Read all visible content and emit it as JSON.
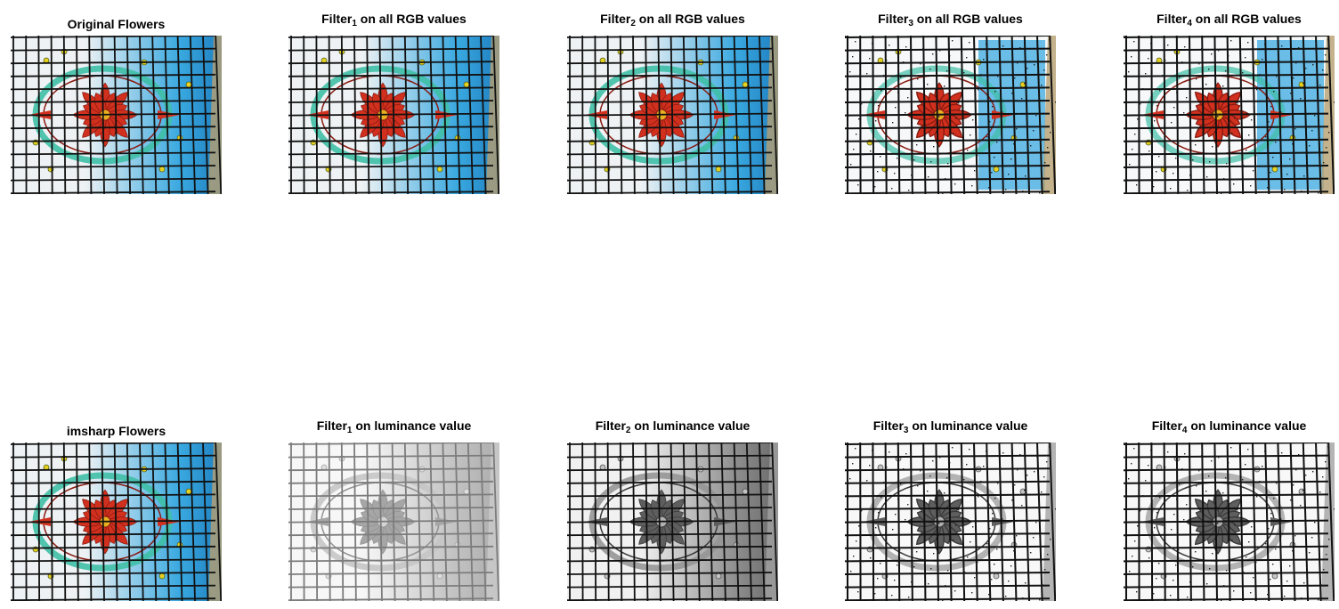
{
  "figure": {
    "panels": [
      {
        "id": "original",
        "title": "Original Flowers",
        "variant": "color"
      },
      {
        "id": "rgb1",
        "title_prefix": "Filter",
        "title_sub": "1",
        "title_suffix": " on all RGB values",
        "variant": "color"
      },
      {
        "id": "rgb2",
        "title_prefix": "Filter",
        "title_sub": "2",
        "title_suffix": " on all RGB values",
        "variant": "color"
      },
      {
        "id": "rgb3",
        "title_prefix": "Filter",
        "title_sub": "3",
        "title_suffix": " on all RGB values",
        "variant": "color-edges"
      },
      {
        "id": "rgb4",
        "title_prefix": "Filter",
        "title_sub": "4",
        "title_suffix": " on all RGB values",
        "variant": "color-edges"
      },
      {
        "id": "imsharp",
        "title": "imsharp Flowers",
        "variant": "color"
      },
      {
        "id": "lum1",
        "title_prefix": "Filter",
        "title_sub": "1",
        "title_suffix": " on luminance value",
        "variant": "gray-light"
      },
      {
        "id": "lum2",
        "title_prefix": "Filter",
        "title_sub": "2",
        "title_suffix": " on luminance value",
        "variant": "gray"
      },
      {
        "id": "lum3",
        "title_prefix": "Filter",
        "title_sub": "3",
        "title_suffix": " on luminance value",
        "variant": "gray-edges"
      },
      {
        "id": "lum4",
        "title_prefix": "Filter",
        "title_sub": "4",
        "title_suffix": " on luminance value",
        "variant": "gray-edges"
      }
    ],
    "colors": {
      "sky": "#3aa9e0",
      "petal": "#d2301e",
      "petal_dark": "#8a1a10",
      "ring": "#3fbfa6",
      "lead": "#111111",
      "glass": "#eef2f4",
      "frame": "#b8a070"
    }
  }
}
